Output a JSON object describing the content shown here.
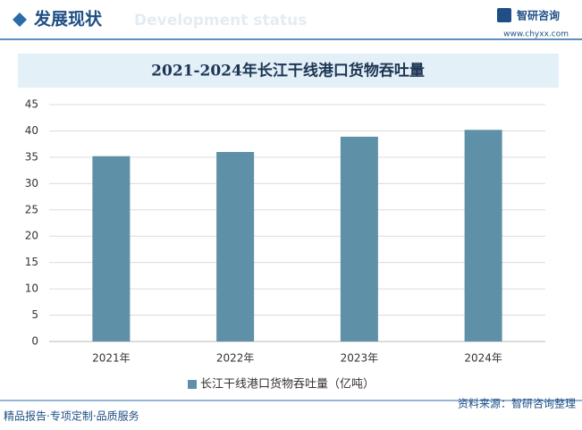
{
  "header": {
    "title": "发展现状",
    "subtitle": "Development status",
    "logo": "智研咨询",
    "url": "www.chyxx.com"
  },
  "chart_data": {
    "type": "bar",
    "title": "2021-2024年长江干线港口货物吞吐量",
    "categories": [
      "2021年",
      "2022年",
      "2023年",
      "2024年"
    ],
    "series": [
      {
        "name": "长江干线港口货物吞吐量（亿吨）",
        "color": "#5e90a8",
        "values": [
          35.2,
          36.0,
          38.9,
          40.2
        ]
      }
    ],
    "ylim": [
      0,
      45
    ],
    "yticks": [
      0,
      5,
      10,
      15,
      20,
      25,
      30,
      35,
      40,
      45
    ],
    "grid": true,
    "legend": "bottom"
  },
  "footer": {
    "source": "资料来源：智研咨询整理",
    "slogan": "精品报告·专项定制·品质服务"
  }
}
